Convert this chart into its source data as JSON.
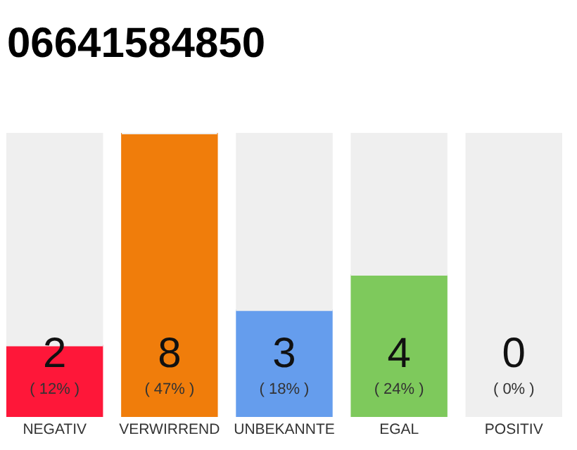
{
  "chart_data": {
    "type": "bar",
    "title": "06641584850",
    "stacked": true,
    "categories": [
      "NEGATIV",
      "VERWIRREND",
      "UNBEKANNTE",
      "EGAL",
      "POSITIV"
    ],
    "series": [
      {
        "colors": [
          "#fe1739",
          "#f07d0b",
          "#659ded",
          "#7ec95c",
          "#2aa54a"
        ],
        "values": [
          2,
          8,
          3,
          4,
          0
        ],
        "value_labels": [
          "2",
          "8",
          "3",
          "4",
          "0"
        ]
      },
      {
        "color": "#efefef",
        "values": [
          6,
          0,
          5,
          4,
          8
        ]
      }
    ],
    "annotations": [
      "( 12% )",
      "( 47% )",
      "( 18% )",
      "( 24% )",
      "( 0% )"
    ],
    "tick_labels": "x"
  }
}
